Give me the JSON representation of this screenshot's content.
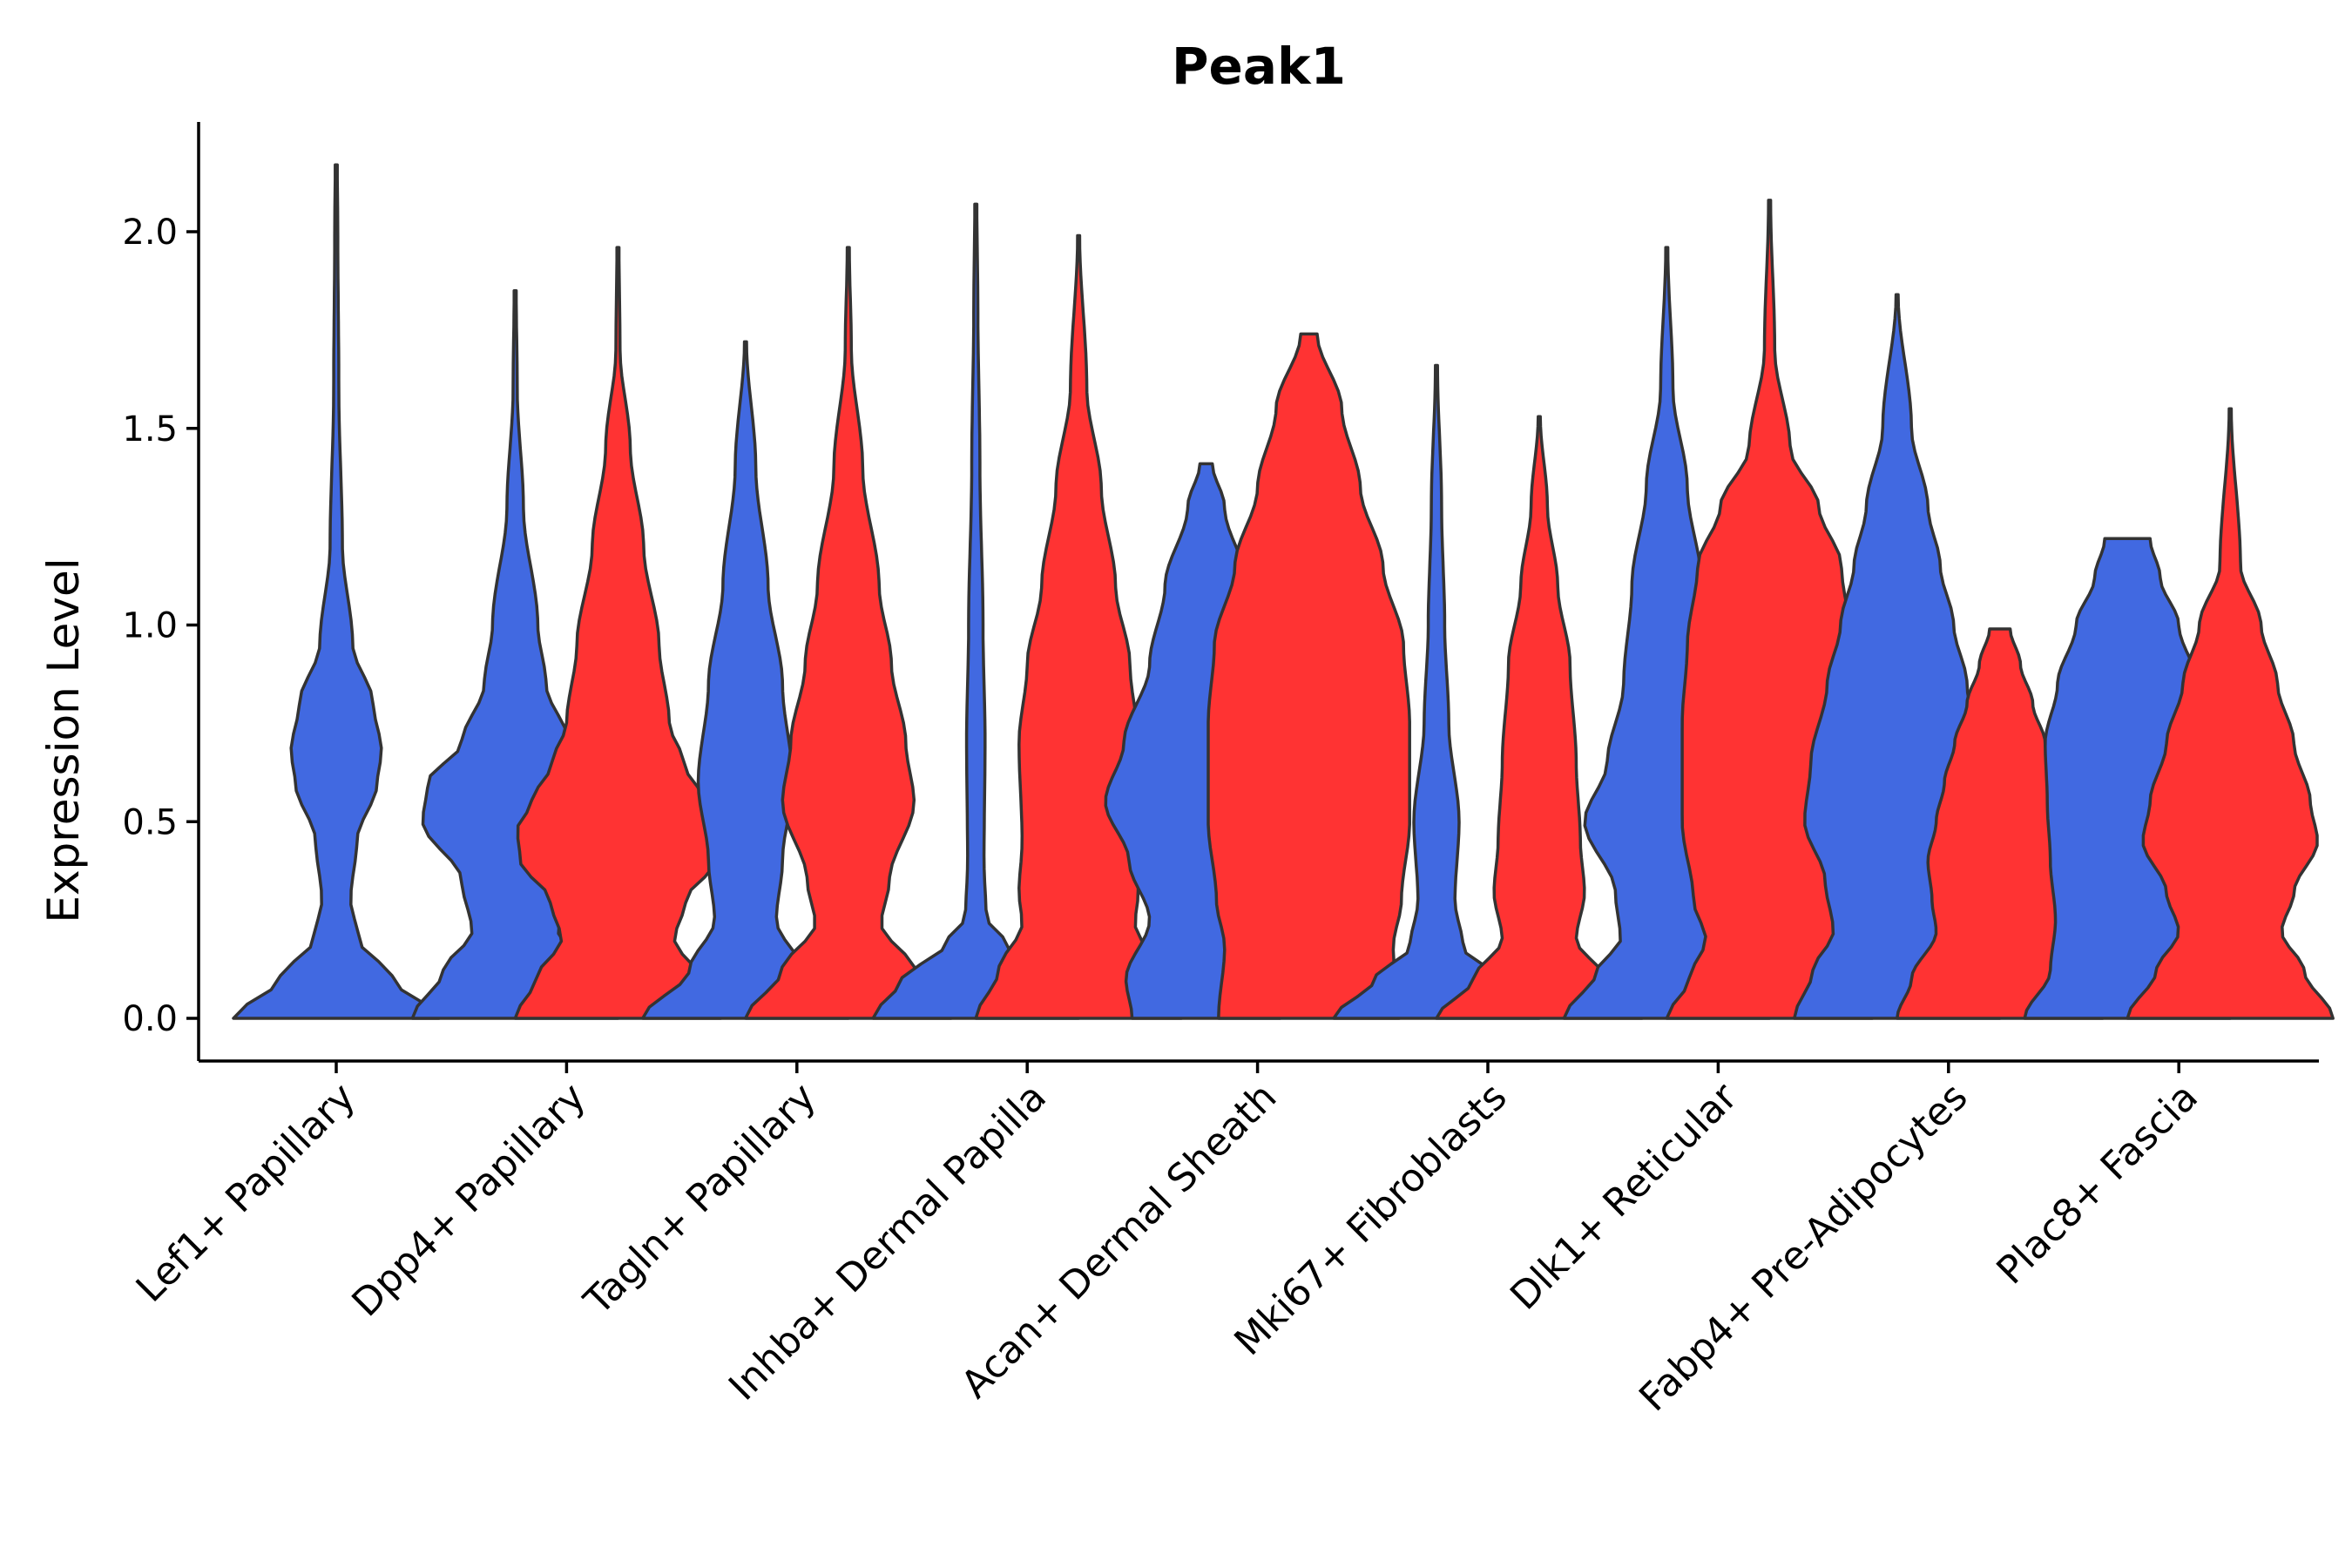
{
  "chart_data": {
    "type": "violin",
    "title": "Peak1",
    "xlabel": "",
    "ylabel": "Expression Level",
    "ylim": [
      -0.11,
      2.28
    ],
    "yticks": [
      "0.0",
      "0.5",
      "1.0",
      "1.5",
      "2.0"
    ],
    "ytick_values": [
      0.0,
      0.5,
      1.0,
      1.5,
      2.0
    ],
    "categories": [
      "Lef1+ Papillary",
      "Dpp4+ Papillary",
      "Tagln+ Papillary",
      "Inhba+ Dermal Papilla",
      "Acan+ Dermal Sheath",
      "Mki67+ Fibroblasts",
      "Dlk1+ Reticular",
      "Fabp4+ Pre-Adipocytes",
      "Plac8+ Fascia"
    ],
    "series_colors": {
      "blue": "#4169E1",
      "red": "#FF3333"
    },
    "violins": [
      {
        "category": 0,
        "color": "blue",
        "max": 2.17,
        "profile": [
          [
            0,
            1.0
          ],
          [
            0.1,
            0.55
          ],
          [
            0.2,
            0.22
          ],
          [
            0.3,
            0.14
          ],
          [
            0.45,
            0.2
          ],
          [
            0.6,
            0.4
          ],
          [
            0.68,
            0.44
          ],
          [
            0.8,
            0.36
          ],
          [
            0.95,
            0.16
          ],
          [
            1.2,
            0.06
          ],
          [
            1.6,
            0.025
          ],
          [
            2.0,
            0.015
          ],
          [
            2.17,
            0.01
          ]
        ]
      },
      {
        "category": 1,
        "color": "blue",
        "max": 1.85,
        "profile": [
          [
            0,
            1.0
          ],
          [
            0.12,
            0.7
          ],
          [
            0.22,
            0.42
          ],
          [
            0.35,
            0.52
          ],
          [
            0.5,
            0.9
          ],
          [
            0.6,
            0.85
          ],
          [
            0.7,
            0.52
          ],
          [
            0.85,
            0.3
          ],
          [
            1.0,
            0.22
          ],
          [
            1.3,
            0.08
          ],
          [
            1.6,
            0.02
          ],
          [
            1.85,
            0.01
          ]
        ]
      },
      {
        "category": 1,
        "color": "red",
        "max": 1.96,
        "profile": [
          [
            0,
            1.0
          ],
          [
            0.1,
            0.8
          ],
          [
            0.2,
            0.55
          ],
          [
            0.3,
            0.66
          ],
          [
            0.4,
            0.95
          ],
          [
            0.48,
            0.98
          ],
          [
            0.55,
            0.84
          ],
          [
            0.65,
            0.64
          ],
          [
            0.75,
            0.5
          ],
          [
            0.95,
            0.4
          ],
          [
            1.2,
            0.25
          ],
          [
            1.45,
            0.12
          ],
          [
            1.7,
            0.02
          ],
          [
            1.96,
            0.01
          ]
        ]
      },
      {
        "category": 2,
        "color": "blue",
        "max": 1.72,
        "profile": [
          [
            0,
            1.0
          ],
          [
            0.12,
            0.55
          ],
          [
            0.25,
            0.3
          ],
          [
            0.4,
            0.36
          ],
          [
            0.6,
            0.46
          ],
          [
            0.85,
            0.36
          ],
          [
            1.1,
            0.22
          ],
          [
            1.4,
            0.1
          ],
          [
            1.72,
            0.01
          ]
        ]
      },
      {
        "category": 2,
        "color": "red",
        "max": 1.96,
        "profile": [
          [
            0,
            1.0
          ],
          [
            0.12,
            0.65
          ],
          [
            0.24,
            0.32
          ],
          [
            0.35,
            0.4
          ],
          [
            0.55,
            0.64
          ],
          [
            0.7,
            0.56
          ],
          [
            0.9,
            0.42
          ],
          [
            1.1,
            0.3
          ],
          [
            1.4,
            0.14
          ],
          [
            1.7,
            0.03
          ],
          [
            1.96,
            0.01
          ]
        ]
      },
      {
        "category": 3,
        "color": "blue",
        "max": 2.07,
        "profile": [
          [
            0,
            1.0
          ],
          [
            0.1,
            0.72
          ],
          [
            0.18,
            0.32
          ],
          [
            0.26,
            0.1
          ],
          [
            0.4,
            0.08
          ],
          [
            0.7,
            0.09
          ],
          [
            1.0,
            0.07
          ],
          [
            1.4,
            0.04
          ],
          [
            1.8,
            0.02
          ],
          [
            2.07,
            0.01
          ]
        ]
      },
      {
        "category": 3,
        "color": "red",
        "max": 1.99,
        "profile": [
          [
            0,
            1.0
          ],
          [
            0.12,
            0.78
          ],
          [
            0.24,
            0.55
          ],
          [
            0.32,
            0.58
          ],
          [
            0.45,
            0.55
          ],
          [
            0.7,
            0.58
          ],
          [
            0.9,
            0.5
          ],
          [
            1.1,
            0.36
          ],
          [
            1.35,
            0.22
          ],
          [
            1.6,
            0.08
          ],
          [
            1.99,
            0.01
          ]
        ]
      },
      {
        "category": 4,
        "color": "blue",
        "max": 1.41,
        "profile": [
          [
            0,
            0.72
          ],
          [
            0.1,
            0.78
          ],
          [
            0.25,
            0.55
          ],
          [
            0.4,
            0.75
          ],
          [
            0.55,
            0.98
          ],
          [
            0.7,
            0.8
          ],
          [
            0.9,
            0.55
          ],
          [
            1.1,
            0.4
          ],
          [
            1.3,
            0.18
          ],
          [
            1.41,
            0.06
          ]
        ]
      },
      {
        "category": 4,
        "color": "red",
        "max": 1.74,
        "profile": [
          [
            0,
            0.88
          ],
          [
            0.18,
            0.82
          ],
          [
            0.3,
            0.9
          ],
          [
            0.5,
            0.98
          ],
          [
            0.75,
            0.98
          ],
          [
            0.95,
            0.92
          ],
          [
            1.15,
            0.72
          ],
          [
            1.35,
            0.5
          ],
          [
            1.55,
            0.32
          ],
          [
            1.74,
            0.08
          ]
        ]
      },
      {
        "category": 5,
        "color": "blue",
        "max": 1.66,
        "profile": [
          [
            0,
            1.0
          ],
          [
            0.1,
            0.6
          ],
          [
            0.18,
            0.26
          ],
          [
            0.3,
            0.18
          ],
          [
            0.5,
            0.22
          ],
          [
            0.75,
            0.12
          ],
          [
            1.0,
            0.08
          ],
          [
            1.3,
            0.05
          ],
          [
            1.66,
            0.01
          ]
        ]
      },
      {
        "category": 5,
        "color": "red",
        "max": 1.53,
        "profile": [
          [
            0,
            1.0
          ],
          [
            0.1,
            0.64
          ],
          [
            0.2,
            0.36
          ],
          [
            0.32,
            0.44
          ],
          [
            0.45,
            0.4
          ],
          [
            0.65,
            0.36
          ],
          [
            0.9,
            0.3
          ],
          [
            1.1,
            0.18
          ],
          [
            1.3,
            0.08
          ],
          [
            1.53,
            0.01
          ]
        ]
      },
      {
        "category": 6,
        "color": "blue",
        "max": 1.96,
        "profile": [
          [
            0,
            1.0
          ],
          [
            0.12,
            0.68
          ],
          [
            0.2,
            0.45
          ],
          [
            0.32,
            0.5
          ],
          [
            0.5,
            0.8
          ],
          [
            0.65,
            0.58
          ],
          [
            0.85,
            0.42
          ],
          [
            1.1,
            0.34
          ],
          [
            1.35,
            0.2
          ],
          [
            1.6,
            0.06
          ],
          [
            1.96,
            0.01
          ]
        ]
      },
      {
        "category": 6,
        "color": "red",
        "max": 2.08,
        "profile": [
          [
            0,
            1.0
          ],
          [
            0.1,
            0.78
          ],
          [
            0.2,
            0.62
          ],
          [
            0.3,
            0.74
          ],
          [
            0.5,
            0.85
          ],
          [
            0.75,
            0.85
          ],
          [
            0.95,
            0.8
          ],
          [
            1.15,
            0.7
          ],
          [
            1.3,
            0.48
          ],
          [
            1.45,
            0.2
          ],
          [
            1.7,
            0.05
          ],
          [
            2.08,
            0.01
          ]
        ]
      },
      {
        "category": 7,
        "color": "blue",
        "max": 1.84,
        "profile": [
          [
            0,
            1.0
          ],
          [
            0.12,
            0.82
          ],
          [
            0.22,
            0.62
          ],
          [
            0.35,
            0.7
          ],
          [
            0.5,
            0.9
          ],
          [
            0.65,
            0.84
          ],
          [
            0.85,
            0.68
          ],
          [
            1.0,
            0.55
          ],
          [
            1.15,
            0.42
          ],
          [
            1.3,
            0.3
          ],
          [
            1.5,
            0.14
          ],
          [
            1.84,
            0.01
          ]
        ]
      },
      {
        "category": 7,
        "color": "red",
        "max": 0.99,
        "profile": [
          [
            0,
            1.0
          ],
          [
            0.1,
            0.86
          ],
          [
            0.22,
            0.62
          ],
          [
            0.3,
            0.66
          ],
          [
            0.4,
            0.7
          ],
          [
            0.5,
            0.62
          ],
          [
            0.6,
            0.54
          ],
          [
            0.7,
            0.44
          ],
          [
            0.8,
            0.32
          ],
          [
            0.9,
            0.2
          ],
          [
            0.99,
            0.1
          ]
        ]
      },
      {
        "category": 8,
        "color": "blue",
        "max": 1.22,
        "profile": [
          [
            0,
            1.0
          ],
          [
            0.12,
            0.75
          ],
          [
            0.25,
            0.7
          ],
          [
            0.4,
            0.75
          ],
          [
            0.55,
            0.78
          ],
          [
            0.7,
            0.8
          ],
          [
            0.85,
            0.68
          ],
          [
            1.0,
            0.5
          ],
          [
            1.12,
            0.32
          ],
          [
            1.22,
            0.22
          ]
        ]
      },
      {
        "category": 8,
        "color": "red",
        "max": 1.55,
        "profile": [
          [
            0,
            1.0
          ],
          [
            0.12,
            0.72
          ],
          [
            0.22,
            0.5
          ],
          [
            0.32,
            0.62
          ],
          [
            0.45,
            0.85
          ],
          [
            0.55,
            0.78
          ],
          [
            0.7,
            0.62
          ],
          [
            0.85,
            0.46
          ],
          [
            1.0,
            0.3
          ],
          [
            1.15,
            0.1
          ],
          [
            1.55,
            0.01
          ]
        ]
      }
    ]
  }
}
